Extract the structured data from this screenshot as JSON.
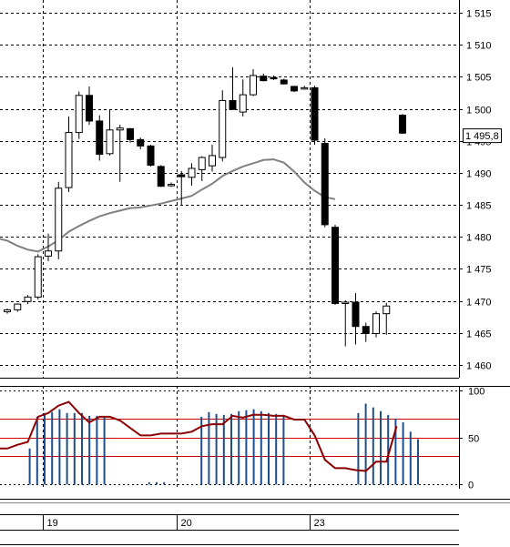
{
  "chart_data": [
    {
      "type": "candlestick",
      "ylim": [
        1458,
        1517
      ],
      "yticks": [
        1460,
        1465,
        1470,
        1475,
        1480,
        1485,
        1490,
        1495,
        1500,
        1505,
        1510,
        1515
      ],
      "ytick_labels": [
        "1 460",
        "1 465",
        "1 470",
        "1 475",
        "1 480",
        "1 485",
        "1 490",
        "1 495",
        "1 500",
        "1 505",
        "1 510",
        "1 515"
      ],
      "last_price_label": "1 495,8",
      "last_price": 1495.8,
      "grid": true,
      "x": [
        0,
        1,
        2,
        3,
        4,
        5,
        6,
        7,
        8,
        9,
        10,
        11,
        12,
        13,
        14,
        15,
        16,
        17,
        18,
        19,
        20,
        21,
        22,
        23,
        24,
        25,
        26,
        27,
        28,
        29,
        30,
        31,
        32,
        33,
        34,
        35,
        36,
        37,
        38,
        39,
        40,
        41,
        42,
        43,
        44,
        45,
        46,
        47,
        48,
        49,
        50,
        51,
        52,
        53,
        54,
        55
      ],
      "day_separators": [
        {
          "index": 3.5,
          "label": "19"
        },
        {
          "index": 16.5,
          "label": "20"
        },
        {
          "index": 29.5,
          "label": "23"
        }
      ],
      "candles": [
        {
          "o": 1468.3,
          "h": 1468.8,
          "l": 1468.0,
          "c": 1468.6
        },
        {
          "o": 1468.6,
          "h": 1469.6,
          "l": 1468.3,
          "c": 1469.5
        },
        {
          "o": 1469.9,
          "h": 1470.9,
          "l": 1469.5,
          "c": 1470.6
        },
        {
          "o": 1470.6,
          "h": 1477.3,
          "l": 1470.2,
          "c": 1476.9
        },
        {
          "o": 1477.0,
          "h": 1480.5,
          "l": 1476.2,
          "c": 1477.8
        },
        {
          "o": 1477.8,
          "h": 1488.6,
          "l": 1476.5,
          "c": 1487.6
        },
        {
          "o": 1487.7,
          "h": 1498.8,
          "l": 1487.0,
          "c": 1496.3
        },
        {
          "o": 1496.3,
          "h": 1502.7,
          "l": 1495.3,
          "c": 1502.1
        },
        {
          "o": 1502.1,
          "h": 1503.5,
          "l": 1497.5,
          "c": 1498.1
        },
        {
          "o": 1498.1,
          "h": 1499.0,
          "l": 1491.9,
          "c": 1492.9
        },
        {
          "o": 1493.0,
          "h": 1499.9,
          "l": 1492.7,
          "c": 1496.7
        },
        {
          "o": 1496.7,
          "h": 1497.5,
          "l": 1488.6,
          "c": 1497.0
        },
        {
          "o": 1496.9,
          "h": 1497.0,
          "l": 1494.7,
          "c": 1495.2
        },
        {
          "o": 1495.2,
          "h": 1495.5,
          "l": 1493.7,
          "c": 1494.2
        },
        {
          "o": 1494.2,
          "h": 1494.4,
          "l": 1491.0,
          "c": 1491.2
        },
        {
          "o": 1491.0,
          "h": 1491.2,
          "l": 1487.8,
          "c": 1487.9
        },
        {
          "o": 1488.1,
          "h": 1488.5,
          "l": 1487.8,
          "c": 1488.2
        },
        {
          "o": 1489.7,
          "h": 1490.3,
          "l": 1485.0,
          "c": 1489.4
        },
        {
          "o": 1489.3,
          "h": 1491.5,
          "l": 1488.0,
          "c": 1490.7
        },
        {
          "o": 1490.5,
          "h": 1492.6,
          "l": 1488.7,
          "c": 1492.4
        },
        {
          "o": 1491.1,
          "h": 1494.4,
          "l": 1490.2,
          "c": 1492.7
        },
        {
          "o": 1492.4,
          "h": 1502.9,
          "l": 1491.8,
          "c": 1501.3
        },
        {
          "o": 1501.3,
          "h": 1506.5,
          "l": 1500.0,
          "c": 1499.9
        },
        {
          "o": 1499.5,
          "h": 1504.6,
          "l": 1498.8,
          "c": 1502.2
        },
        {
          "o": 1502.2,
          "h": 1506.2,
          "l": 1502.0,
          "c": 1505.2
        },
        {
          "o": 1505.1,
          "h": 1505.5,
          "l": 1504.3,
          "c": 1504.4
        },
        {
          "o": 1504.9,
          "h": 1505.2,
          "l": 1504.5,
          "c": 1504.7
        },
        {
          "o": 1504.5,
          "h": 1504.7,
          "l": 1503.8,
          "c": 1503.9
        },
        {
          "o": 1503.5,
          "h": 1503.6,
          "l": 1502.6,
          "c": 1502.8
        },
        {
          "o": 1503.2,
          "h": 1503.6,
          "l": 1503.0,
          "c": 1503.3
        },
        {
          "o": 1503.3,
          "h": 1503.6,
          "l": 1494.4,
          "c": 1495.1
        },
        {
          "o": 1494.6,
          "h": 1495.4,
          "l": 1481.5,
          "c": 1481.9
        },
        {
          "o": 1481.5,
          "h": 1481.9,
          "l": 1469.4,
          "c": 1469.6
        },
        {
          "o": 1469.6,
          "h": 1470.1,
          "l": 1462.9,
          "c": 1469.8
        },
        {
          "o": 1469.8,
          "h": 1471.2,
          "l": 1463.2,
          "c": 1466.0
        },
        {
          "o": 1466.0,
          "h": 1466.6,
          "l": 1463.6,
          "c": 1464.9
        },
        {
          "o": 1464.9,
          "h": 1468.4,
          "l": 1464.3,
          "c": 1468.0
        },
        {
          "o": 1468.0,
          "h": 1469.7,
          "l": 1464.7,
          "c": 1469.2
        },
        {
          "o": 1499.0,
          "h": 1499.2,
          "l": 1496.1,
          "c": 1496.2
        }
      ],
      "candle_slots": [
        0,
        1,
        2,
        3,
        4,
        5,
        6,
        7,
        8,
        9,
        10,
        11,
        12,
        13,
        14,
        15,
        16,
        17,
        18,
        19,
        20,
        21,
        22,
        23,
        24,
        25,
        26,
        27,
        28,
        29,
        30,
        31,
        32,
        33,
        34,
        35,
        36,
        37,
        38
      ],
      "moving_average": {
        "color": "#808080",
        "points": [
          [
            -1,
            1479.8
          ],
          [
            0,
            1479.4
          ],
          [
            1,
            1478.6
          ],
          [
            2,
            1478.0
          ],
          [
            3,
            1477.7
          ],
          [
            4,
            1478.5
          ],
          [
            5,
            1479.5
          ],
          [
            6,
            1480.8
          ],
          [
            7,
            1481.7
          ],
          [
            8,
            1482.5
          ],
          [
            9,
            1483.2
          ],
          [
            10,
            1483.7
          ],
          [
            11,
            1484.1
          ],
          [
            12,
            1484.5
          ],
          [
            13,
            1484.6
          ],
          [
            14,
            1484.9
          ],
          [
            15,
            1485.2
          ],
          [
            16,
            1485.6
          ],
          [
            17,
            1486.0
          ],
          [
            18,
            1486.4
          ],
          [
            19,
            1487.4
          ],
          [
            20,
            1488.3
          ],
          [
            21,
            1489.5
          ],
          [
            22,
            1490.3
          ],
          [
            23,
            1491.0
          ],
          [
            24,
            1491.5
          ],
          [
            25,
            1492.0
          ],
          [
            26,
            1492.1
          ],
          [
            27,
            1491.6
          ],
          [
            28,
            1490.2
          ],
          [
            29,
            1488.5
          ],
          [
            30,
            1487.2
          ],
          [
            31,
            1486.2
          ],
          [
            32,
            1485.9
          ]
        ]
      }
    },
    {
      "type": "oscillator",
      "ylim": [
        -5,
        105
      ],
      "yticks": [
        0,
        50,
        100
      ],
      "ytick_labels": [
        "0",
        "50",
        "100"
      ],
      "levels": [
        {
          "value": 70,
          "color": "#cc0000"
        },
        {
          "value": 50,
          "color": "#cc0000"
        },
        {
          "value": 30,
          "color": "#cc0000"
        }
      ],
      "histogram": {
        "color": "#1f4e8c",
        "values": [
          0,
          0,
          0,
          38,
          72,
          76,
          77,
          80,
          76,
          76,
          76,
          73,
          73,
          72,
          0,
          0,
          0,
          0,
          0,
          2,
          2,
          2,
          0,
          0,
          0,
          0,
          72,
          77,
          75,
          74,
          75,
          78,
          79,
          80,
          78,
          76,
          75,
          74,
          0,
          0,
          0,
          0,
          0,
          0,
          0,
          0,
          0,
          76,
          86,
          82,
          78,
          74,
          70,
          66,
          56,
          48
        ]
      },
      "line": {
        "color": "#8b0000",
        "points": [
          [
            -1,
            38
          ],
          [
            0,
            38
          ],
          [
            1,
            42
          ],
          [
            2,
            45
          ],
          [
            3,
            72
          ],
          [
            4,
            76
          ],
          [
            5,
            84
          ],
          [
            6,
            88
          ],
          [
            7,
            76
          ],
          [
            8,
            66
          ],
          [
            9,
            72
          ],
          [
            10,
            72
          ],
          [
            11,
            68
          ],
          [
            12,
            60
          ],
          [
            13,
            52
          ],
          [
            14,
            52
          ],
          [
            15,
            54
          ],
          [
            16,
            54
          ],
          [
            17,
            54
          ],
          [
            18,
            56
          ],
          [
            19,
            62
          ],
          [
            20,
            64
          ],
          [
            21,
            64
          ],
          [
            22,
            73
          ],
          [
            23,
            71
          ],
          [
            24,
            74
          ],
          [
            25,
            74
          ],
          [
            26,
            73
          ],
          [
            27,
            73
          ],
          [
            28,
            69
          ],
          [
            29,
            69
          ],
          [
            30,
            52
          ],
          [
            31,
            26
          ],
          [
            32,
            17
          ],
          [
            33,
            17
          ],
          [
            34,
            15
          ],
          [
            35,
            14
          ],
          [
            36,
            24
          ],
          [
            37,
            24
          ],
          [
            38,
            62
          ]
        ]
      }
    }
  ]
}
